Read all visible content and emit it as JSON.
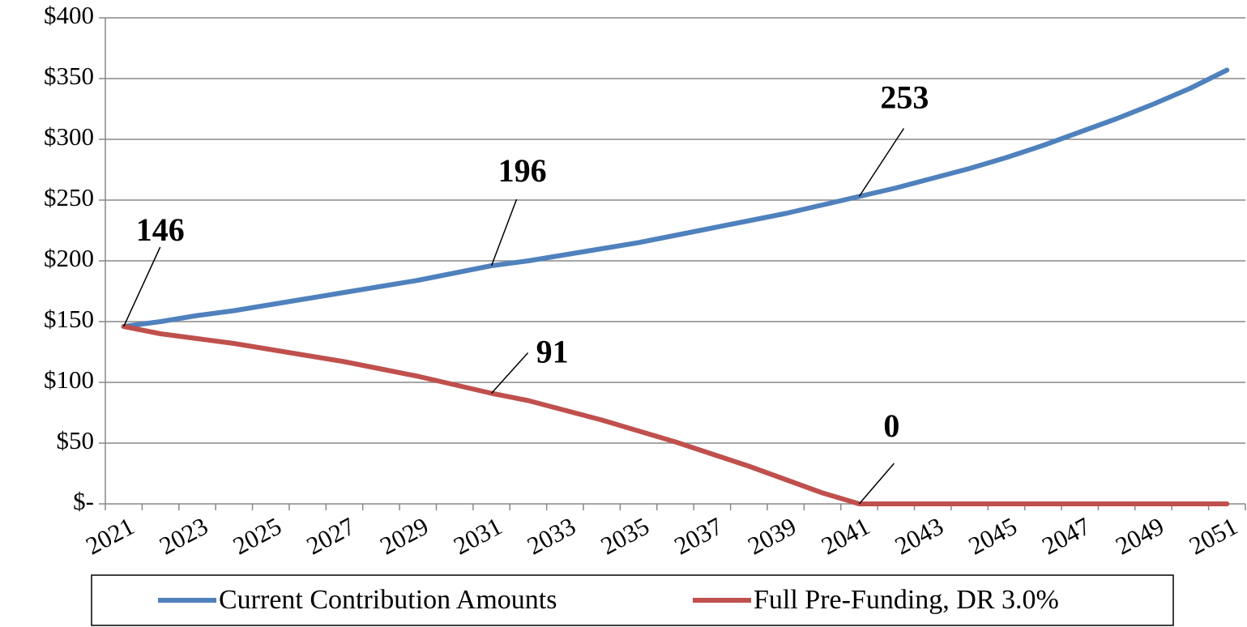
{
  "chart_data": {
    "type": "line",
    "categories": [
      "2021",
      null,
      "2023",
      null,
      "2025",
      null,
      "2027",
      null,
      "2029",
      null,
      "2031",
      null,
      "2033",
      null,
      "2035",
      null,
      "2037",
      null,
      "2039",
      null,
      "2041",
      null,
      "2043",
      null,
      "2045",
      null,
      "2047",
      null,
      "2049",
      null,
      "2051"
    ],
    "series": [
      {
        "name": "Current Contribution Amounts",
        "color": "#4f81bd",
        "values": [
          146,
          150,
          155,
          159,
          164,
          169,
          174,
          179,
          184,
          190,
          196,
          200,
          205,
          210,
          215,
          221,
          227,
          233,
          239,
          246,
          253,
          260,
          268,
          276,
          285,
          295,
          306,
          317,
          329,
          342,
          357
        ],
        "data_labels": [
          0,
          10,
          20
        ]
      },
      {
        "name": "Full Pre-Funding, DR 3.0%",
        "color": "#c0504d",
        "values": [
          146,
          140,
          136,
          132,
          127,
          122,
          117,
          111,
          105,
          98,
          91,
          85,
          77,
          69,
          60,
          51,
          41,
          31,
          20,
          9,
          0,
          0,
          0,
          0,
          0,
          0,
          0,
          0,
          0,
          0,
          0
        ],
        "data_labels": [
          10,
          20
        ]
      }
    ],
    "ylim": [
      0,
      400
    ],
    "yticks": [
      {
        "value": 0,
        "label": "$-"
      },
      {
        "value": 50,
        "label": "$50"
      },
      {
        "value": 100,
        "label": "$100"
      },
      {
        "value": 150,
        "label": "$150"
      },
      {
        "value": 200,
        "label": "$200"
      },
      {
        "value": 250,
        "label": "$250"
      },
      {
        "value": 300,
        "label": "$300"
      },
      {
        "value": 350,
        "label": "$350"
      },
      {
        "value": 400,
        "label": "$400"
      }
    ],
    "grid": true,
    "legend": "bottom"
  }
}
